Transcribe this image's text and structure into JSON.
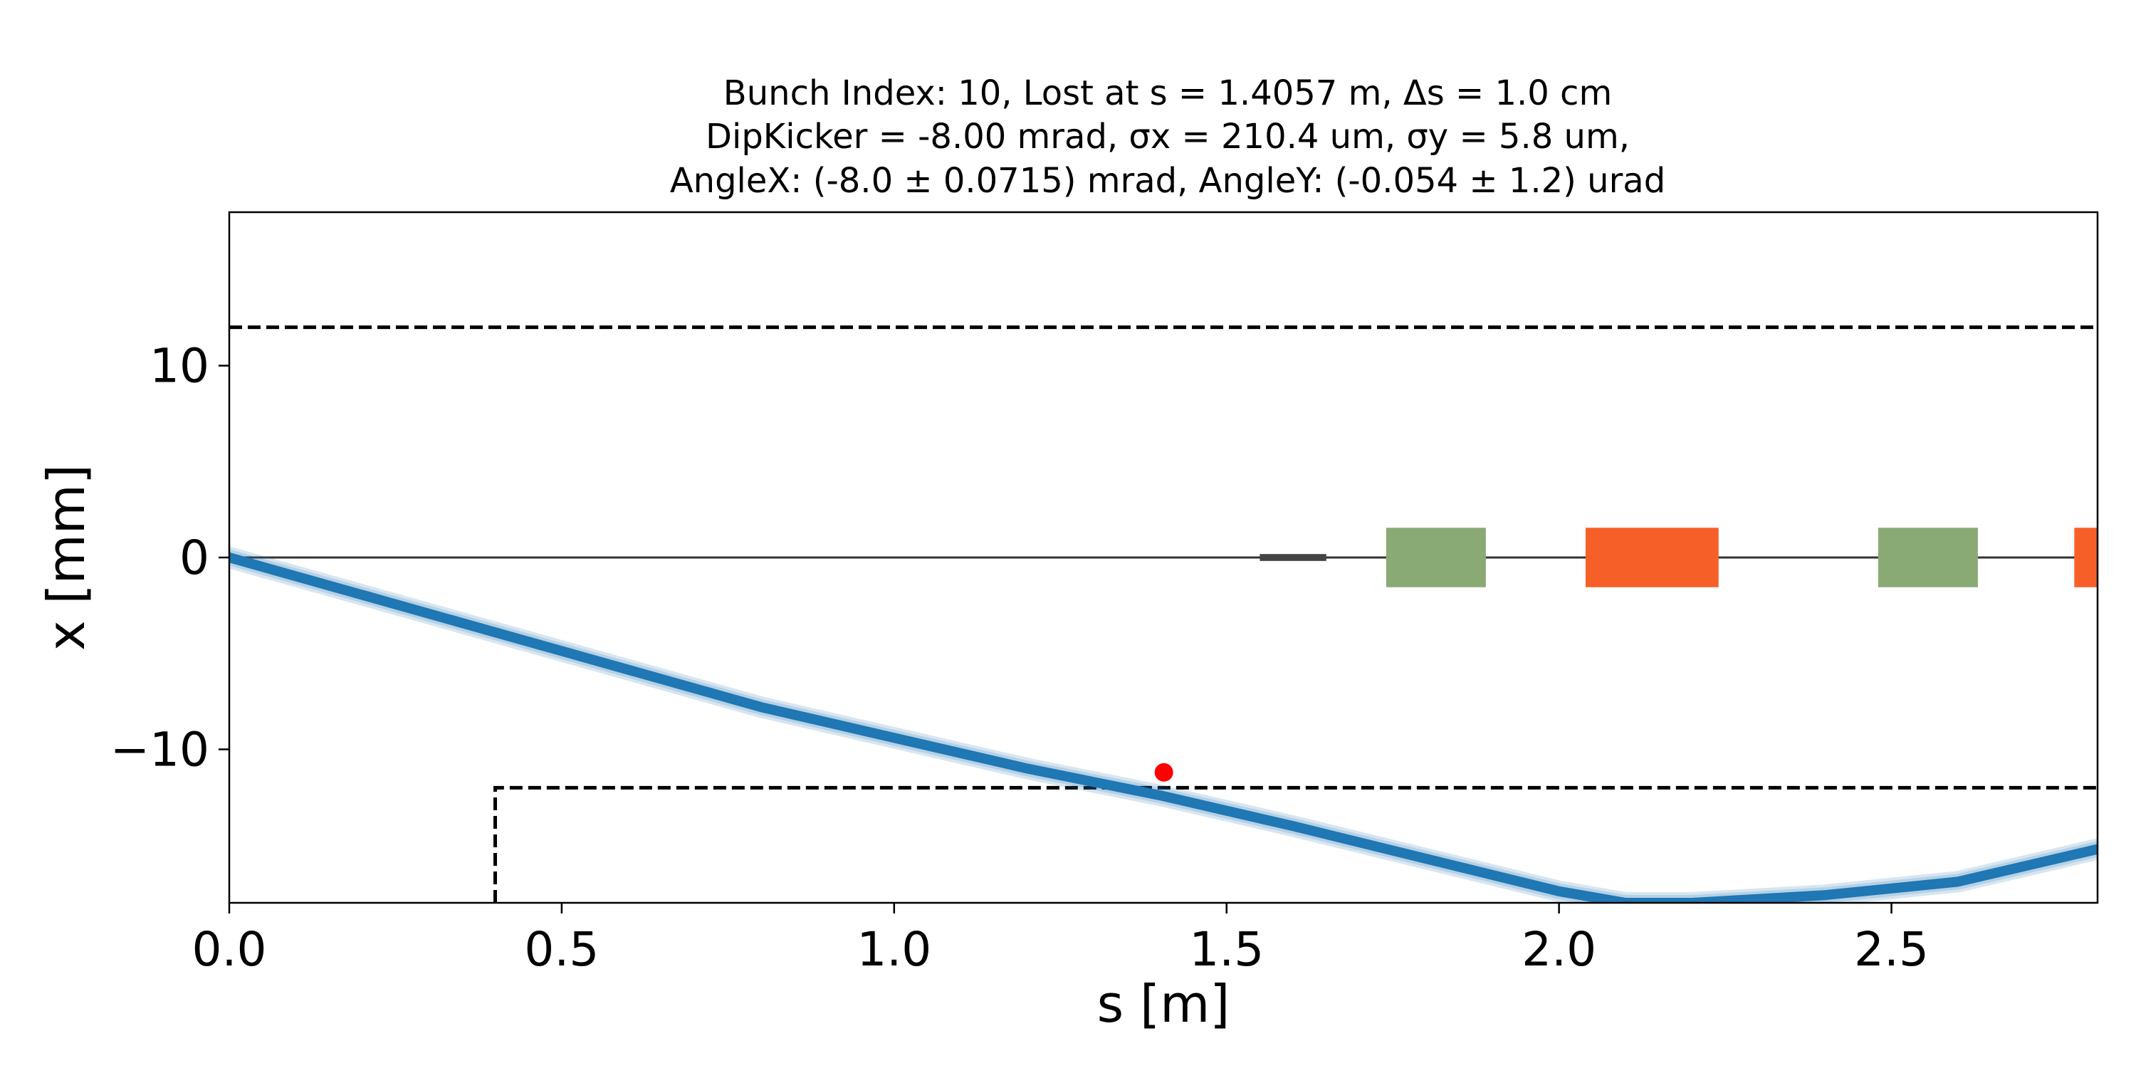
{
  "chart_data": {
    "type": "line",
    "title_lines": [
      "Bunch Index: 10, Lost at s = 1.4057 m, Δs = 1.0 cm",
      "DipKicker = -8.00 mrad, σx = 210.4 um, σy = 5.8 um,",
      "AngleX: (-8.0 ± 0.0715) mrad, AngleY: (-0.054 ± 1.2) urad"
    ],
    "xlabel": "s [m]",
    "ylabel": "x [mm]",
    "xlim": [
      0.0,
      2.81
    ],
    "ylim": [
      -18,
      18
    ],
    "xticks": [
      0.0,
      0.5,
      1.0,
      1.5,
      2.0,
      2.5
    ],
    "xtick_labels": [
      "0.0",
      "0.5",
      "1.0",
      "1.5",
      "2.0",
      "2.5"
    ],
    "yticks": [
      10,
      0,
      -10
    ],
    "ytick_labels": [
      "10",
      "0",
      "−10"
    ],
    "grid": false,
    "series": [
      {
        "color": "#1f77b4",
        "x": [
          0.0,
          0.4,
          0.8,
          1.2,
          1.4,
          1.6,
          1.8,
          2.0,
          2.1,
          2.2,
          2.4,
          2.6,
          2.81
        ],
        "y": [
          0.0,
          -3.9,
          -7.8,
          -11.0,
          -12.4,
          -14.0,
          -15.7,
          -17.4,
          -18.0,
          -18.0,
          -17.6,
          -16.9,
          -15.2
        ]
      }
    ],
    "lost_point": {
      "x": 1.4057,
      "y": -11.2,
      "color": "#ff0000"
    },
    "aperture_upper": {
      "y": 12.0,
      "x_start": 0.0,
      "x_end": 2.81
    },
    "aperture_lower": {
      "y": -12.0,
      "x_start": 0.4,
      "x_end": 2.81,
      "x_step": 0.4
    },
    "beamline_axis": {
      "y": 0.0,
      "color": "#333333"
    },
    "elements": [
      {
        "kind": "thin",
        "s_start": 1.55,
        "s_end": 1.65,
        "half_height": 0.18,
        "color": "#444444"
      },
      {
        "kind": "quad",
        "s_start": 1.74,
        "s_end": 1.89,
        "half_height": 1.55,
        "color": "#8aaa75"
      },
      {
        "kind": "dipole",
        "s_start": 2.04,
        "s_end": 2.24,
        "half_height": 1.55,
        "color": "#f75f28"
      },
      {
        "kind": "quad",
        "s_start": 2.48,
        "s_end": 2.63,
        "half_height": 1.55,
        "color": "#8aaa75"
      },
      {
        "kind": "dipole",
        "s_start": 2.775,
        "s_end": 2.81,
        "half_height": 1.55,
        "color": "#f75f28"
      }
    ]
  }
}
